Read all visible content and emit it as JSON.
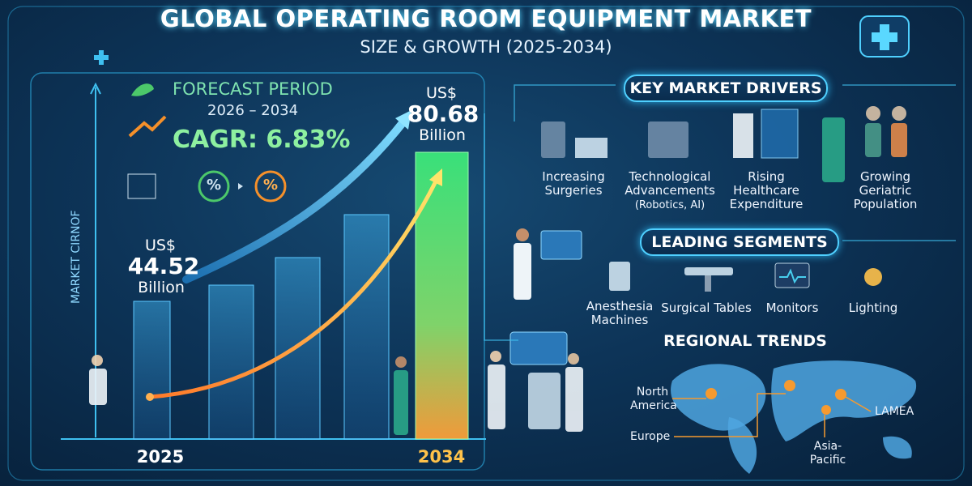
{
  "header": {
    "title": "GLOBAL OPERATING ROOM EQUIPMENT MARKET",
    "subtitle": "SIZE & GROWTH (2025-2034)"
  },
  "forecast": {
    "label": "FORECAST PERIOD",
    "period": "2026 – 2034",
    "cagr": "CAGR: 6.83%",
    "percent_icons": [
      "%",
      "%"
    ]
  },
  "axis_label": "MARKET CIRNOF",
  "start": {
    "currency": "US$",
    "value": "44.52",
    "unit": "Billion",
    "year": "2025"
  },
  "end": {
    "currency": "US$",
    "value": "80.68",
    "unit": "Billion",
    "year": "2034"
  },
  "drivers": {
    "title": "KEY MARKET DRIVERS",
    "items": [
      "Increasing Surgeries",
      "Technological Advancements",
      "(Robotics, AI)",
      "Rising Healthcare Expenditure",
      "Growing Geriatric Population"
    ]
  },
  "segments": {
    "title": "LEADING SEGMENTS",
    "items": [
      "Anesthesia Machines",
      "Surgical Tables",
      "Monitors",
      "Lighting"
    ]
  },
  "regional": {
    "title": "REGIONAL TRENDS",
    "regions": [
      "North America",
      "Europe",
      "Asia-Pacific",
      "LAMEA"
    ]
  }
}
